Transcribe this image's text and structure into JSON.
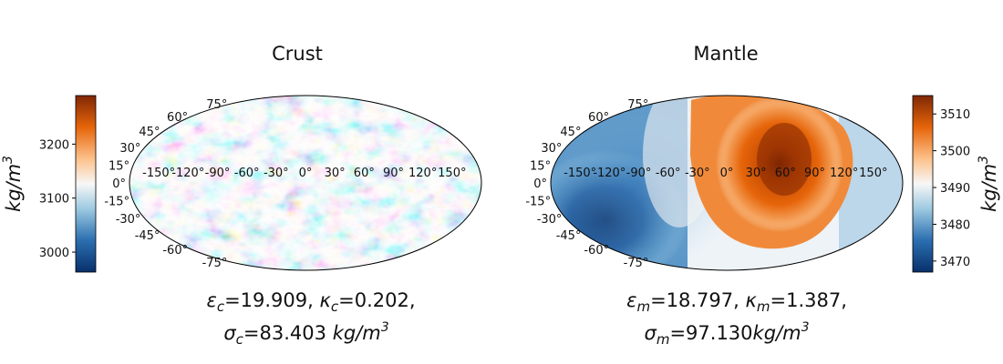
{
  "chart_data": [
    {
      "type": "heatmap",
      "projection": "mollweide",
      "title": "Crust",
      "colormap": "blue-white-orange (diverging)",
      "colorbar": {
        "ticks": [
          "3000",
          "3100",
          "3200"
        ],
        "tick_values": [
          3000,
          3100,
          3200
        ],
        "range": [
          2963,
          3290
        ],
        "label": "kg/m",
        "label_exp": "3",
        "side": "left"
      },
      "longitude_labels": [
        "-150°",
        "-120°",
        "-90°",
        "-60°",
        "-30°",
        "0°",
        "30°",
        "60°",
        "90°",
        "120°",
        "150°"
      ],
      "latitude_labels": [
        "75°",
        "60°",
        "45°",
        "30°",
        "15°",
        "0°",
        "-15°",
        "-30°",
        "-45°",
        "-60°",
        "-75°"
      ],
      "caption": {
        "eps_sym": "ε",
        "eps_sub": "c",
        "eps_val": "=19.909, ",
        "kap_sym": "κ",
        "kap_sub": "c",
        "kap_val": "=0.202,",
        "sig_sym": "σ",
        "sig_sub": "c",
        "sig_val": "=83.403 ",
        "unit": "kg/m",
        "unit_exp": "3"
      }
    },
    {
      "type": "heatmap",
      "projection": "mollweide",
      "title": "Mantle",
      "colormap": "blue-white-orange (diverging)",
      "colorbar": {
        "ticks": [
          "3470",
          "3480",
          "3490",
          "3500",
          "3510"
        ],
        "tick_values": [
          3470,
          3480,
          3490,
          3500,
          3510
        ],
        "range": [
          3467,
          3515
        ],
        "label": "kg/m",
        "label_exp": "3",
        "side": "right"
      },
      "longitude_labels": [
        "-150°",
        "-120°",
        "-90°",
        "-60°",
        "-30°",
        "0°",
        "30°",
        "60°",
        "90°",
        "120°",
        "150°"
      ],
      "latitude_labels": [
        "75°",
        "60°",
        "45°",
        "30°",
        "15°",
        "0°",
        "-15°",
        "-30°",
        "-45°",
        "-60°",
        "-75°"
      ],
      "caption": {
        "eps_sym": "ε",
        "eps_sub": "m",
        "eps_val": "=18.797, ",
        "kap_sym": "κ",
        "kap_sub": "m",
        "kap_val": "=1.387,",
        "sig_sym": "σ",
        "sig_sub": "m",
        "sig_val": "=97.130",
        "unit": "kg/m",
        "unit_exp": "3"
      }
    }
  ],
  "colors": {
    "dark_blue": "#08306b",
    "mid_blue": "#2b6fb0",
    "light_blue": "#9ecae1",
    "white": "#f7f7f7",
    "light_orange": "#fdc28c",
    "mid_orange": "#e6650a",
    "dark_orange": "#7f2704"
  }
}
